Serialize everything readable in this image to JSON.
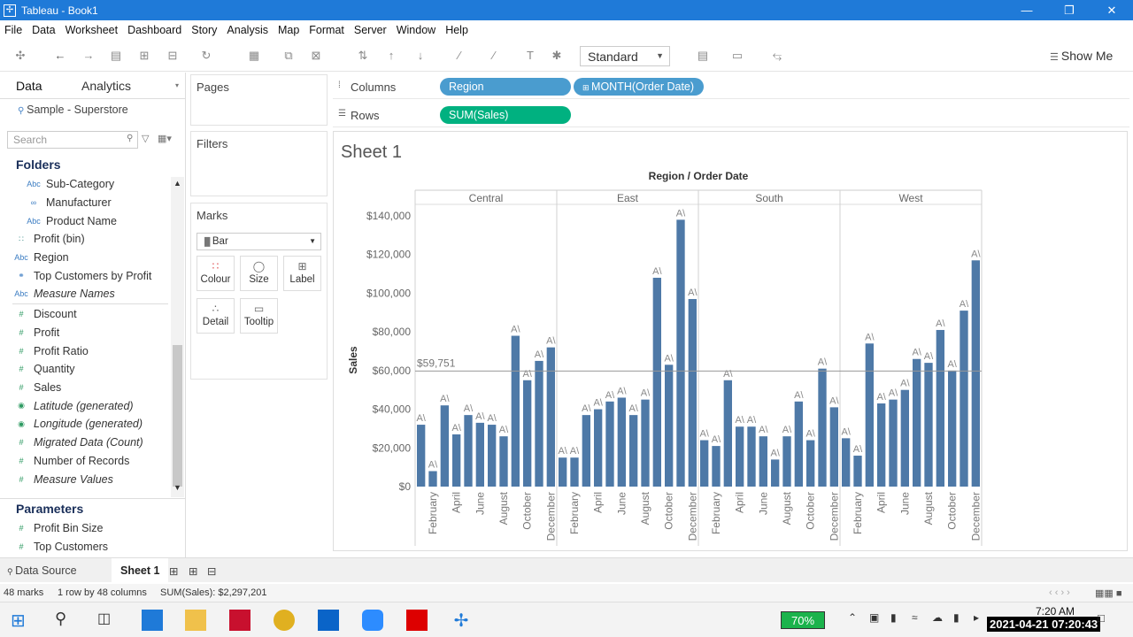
{
  "window": {
    "title": "Tableau - Book1"
  },
  "menu": [
    "File",
    "Data",
    "Worksheet",
    "Dashboard",
    "Story",
    "Analysis",
    "Map",
    "Format",
    "Server",
    "Window",
    "Help"
  ],
  "toolbar": {
    "fit": "Standard",
    "show_me": "Show Me"
  },
  "data_pane": {
    "tabs": [
      "Data",
      "Analytics"
    ],
    "source": "Sample - Superstore",
    "search_placeholder": "Search",
    "folders_header": "Folders",
    "dimensions": [
      {
        "label": "Sub-Category",
        "icon": "Abc",
        "italic": false,
        "indent": true
      },
      {
        "label": "Manufacturer",
        "icon": "link",
        "italic": false,
        "indent": true
      },
      {
        "label": "Product Name",
        "icon": "Abc",
        "italic": false,
        "indent": true
      },
      {
        "label": "Profit (bin)",
        "icon": "bin",
        "italic": false,
        "indent": false
      },
      {
        "label": "Region",
        "icon": "Abc",
        "italic": false,
        "indent": false
      },
      {
        "label": "Top Customers by Profit",
        "icon": "set",
        "italic": false,
        "indent": false
      },
      {
        "label": "Measure Names",
        "icon": "Abc",
        "italic": true,
        "indent": false
      }
    ],
    "measures": [
      {
        "label": "Discount",
        "icon": "#",
        "italic": false
      },
      {
        "label": "Profit",
        "icon": "#",
        "italic": false
      },
      {
        "label": "Profit Ratio",
        "icon": "#",
        "italic": false
      },
      {
        "label": "Quantity",
        "icon": "#",
        "italic": false
      },
      {
        "label": "Sales",
        "icon": "#",
        "italic": false
      },
      {
        "label": "Latitude (generated)",
        "icon": "globe",
        "italic": true
      },
      {
        "label": "Longitude (generated)",
        "icon": "globe",
        "italic": true
      },
      {
        "label": "Migrated Data (Count)",
        "icon": "#",
        "italic": true
      },
      {
        "label": "Number of Records",
        "icon": "#",
        "italic": false
      },
      {
        "label": "Measure Values",
        "icon": "#",
        "italic": true
      }
    ],
    "parameters_header": "Parameters",
    "parameters": [
      {
        "label": "Profit Bin Size",
        "icon": "#"
      },
      {
        "label": "Top Customers",
        "icon": "#"
      }
    ]
  },
  "cards": {
    "pages": "Pages",
    "filters": "Filters",
    "marks": "Marks",
    "mark_type": "Bar",
    "mark_buttons": [
      "Colour",
      "Size",
      "Label",
      "Detail",
      "Tooltip"
    ]
  },
  "shelves": {
    "columns_label": "Columns",
    "rows_label": "Rows",
    "columns_pills": [
      "Region",
      "MONTH(Order Date)"
    ],
    "rows_pills": [
      "SUM(Sales)"
    ]
  },
  "colors": {
    "bar": "#4e79a7",
    "dim_pill": "#4a9ccf",
    "measure_pill": "#00b180",
    "title_bar": "#1f7ad8"
  },
  "sheet": {
    "title": "Sheet 1"
  },
  "chart_data": {
    "type": "bar",
    "title": "Region / Order Date",
    "ylabel": "Sales",
    "ylim": [
      0,
      140000
    ],
    "y_ticks": [
      "$0",
      "$20,000",
      "$40,000",
      "$60,000",
      "$80,000",
      "$100,000",
      "$120,000",
      "$140,000"
    ],
    "reference_line": {
      "value": 59751,
      "label": "$59,751"
    },
    "mark_label": "A\\",
    "x_tick_labels": [
      "February",
      "April",
      "June",
      "August",
      "October",
      "December"
    ],
    "panes": [
      {
        "name": "Central",
        "values": [
          32000,
          8000,
          42000,
          27000,
          37000,
          33000,
          32000,
          26000,
          78000,
          55000,
          65000,
          72000
        ]
      },
      {
        "name": "East",
        "values": [
          15000,
          15000,
          37000,
          40000,
          44000,
          46000,
          37000,
          45000,
          108000,
          63000,
          138000,
          97000
        ]
      },
      {
        "name": "South",
        "values": [
          24000,
          21000,
          55000,
          31000,
          31000,
          26000,
          14000,
          26000,
          44000,
          24000,
          61000,
          41000
        ]
      },
      {
        "name": "West",
        "values": [
          25000,
          16000,
          74000,
          43000,
          45000,
          50000,
          66000,
          64000,
          81000,
          60000,
          91000,
          117000
        ]
      }
    ]
  },
  "bottom": {
    "data_source_tab": "Data Source",
    "sheet_tab": "Sheet 1",
    "status_marks": "48 marks",
    "status_dims": "1 row by 48 columns",
    "status_sum": "SUM(Sales): $2,297,201"
  },
  "taskbar": {
    "battery": "70%",
    "time": "7:20 AM",
    "date_stamp": "2021-04-21 07:20:43"
  }
}
